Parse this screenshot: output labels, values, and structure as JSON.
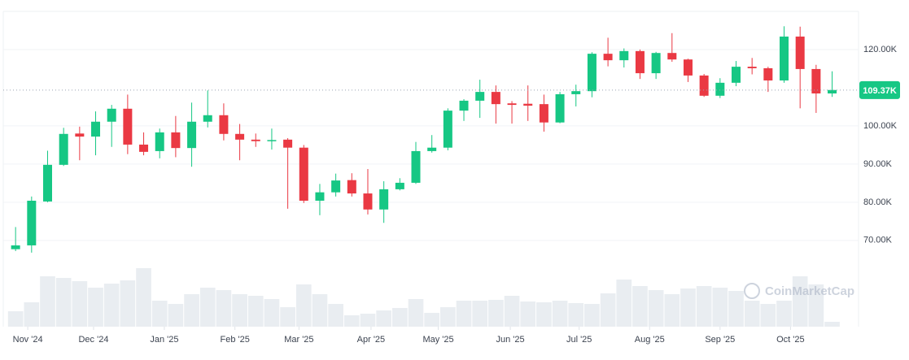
{
  "chart_data": {
    "type": "candlestick",
    "watermark": "CoinMarketCap",
    "ylim": [
      47.4,
      130
    ],
    "yticks": [
      {
        "value": 70,
        "label": "70.00K"
      },
      {
        "value": 80,
        "label": "80.00K"
      },
      {
        "value": 90,
        "label": "90.00K"
      },
      {
        "value": 100,
        "label": "100.00K"
      },
      {
        "value": 120,
        "label": "120.00K"
      }
    ],
    "last_price": {
      "value": 109.37,
      "label": "109.37K"
    },
    "xlim": [
      -0.77,
      52.65
    ],
    "xticks": [
      {
        "value": 0.76,
        "label": "Nov '24"
      },
      {
        "value": 4.87,
        "label": "Dec '24"
      },
      {
        "value": 9.29,
        "label": "Jan '25"
      },
      {
        "value": 13.7,
        "label": "Feb '25"
      },
      {
        "value": 17.7,
        "label": "Mar '25"
      },
      {
        "value": 22.2,
        "label": "Apr '25"
      },
      {
        "value": 26.4,
        "label": "May '25"
      },
      {
        "value": 30.9,
        "label": "Jun '25"
      },
      {
        "value": 35.2,
        "label": "Jul '25"
      },
      {
        "value": 39.6,
        "label": "Aug '25"
      },
      {
        "value": 44.0,
        "label": "Sep '25"
      },
      {
        "value": 48.4,
        "label": "Oct '25"
      }
    ],
    "up_color": "#16c784",
    "down_color": "#ea3943",
    "volume_color": "#e9edf1",
    "open": [
      67.7,
      68.7,
      80.2,
      89.8,
      98.0,
      97.2,
      101.1,
      104.5,
      95.1,
      93.4,
      98.3,
      94.2,
      101.1,
      102.8,
      97.9,
      96.4,
      96.1,
      96.4,
      94.3,
      80.4,
      82.6,
      85.8,
      82.3,
      78.1,
      83.4,
      85.1,
      93.4,
      94.3,
      104.0,
      106.6,
      108.9,
      105.9,
      105.8,
      105.7,
      100.9,
      108.3,
      109.1,
      118.9,
      117.2,
      119.6,
      113.8,
      119.1,
      117.4,
      113.2,
      107.9,
      111.3,
      115.5,
      115.1,
      111.9,
      123.4,
      114.9,
      108.5
    ],
    "high": [
      73.5,
      81.5,
      93.5,
      99.5,
      99.8,
      103.8,
      105.5,
      108.2,
      98.3,
      99.3,
      102.6,
      106.1,
      109.3,
      105.9,
      100.5,
      98.0,
      99.3,
      96.8,
      95.0,
      84.8,
      87.5,
      87.6,
      88.7,
      85.5,
      86.3,
      95.8,
      97.6,
      104.6,
      107.0,
      112.1,
      110.6,
      106.5,
      110.6,
      108.2,
      108.9,
      110.8,
      119.3,
      123.1,
      120.3,
      120.0,
      119.4,
      124.3,
      117.6,
      113.6,
      112.5,
      117.0,
      117.8,
      115.5,
      126.1,
      126.0,
      116.0,
      114.3
    ],
    "low": [
      67.2,
      66.8,
      80.0,
      89.5,
      91.0,
      92.3,
      94.5,
      92.6,
      92.3,
      91.5,
      91.8,
      89.3,
      99.6,
      96.2,
      91.0,
      94.5,
      93.8,
      78.3,
      79.8,
      76.6,
      81.5,
      81.5,
      76.8,
      74.6,
      83.1,
      84.8,
      93.0,
      93.6,
      101.3,
      102.1,
      100.6,
      100.6,
      101.3,
      98.5,
      100.7,
      105.1,
      107.5,
      115.6,
      115.3,
      112.3,
      112.3,
      116.8,
      111.5,
      107.6,
      107.3,
      110.4,
      113.5,
      108.9,
      111.3,
      104.6,
      103.4,
      107.6
    ],
    "close": [
      68.7,
      80.4,
      89.8,
      97.9,
      97.2,
      101.1,
      104.5,
      95.1,
      93.2,
      98.3,
      94.2,
      101.1,
      102.8,
      97.9,
      96.4,
      96.0,
      96.3,
      94.3,
      80.4,
      82.6,
      85.7,
      82.3,
      78.1,
      83.4,
      85.1,
      93.4,
      94.3,
      104.0,
      106.6,
      108.9,
      105.7,
      105.5,
      105.3,
      100.9,
      108.3,
      109.1,
      118.9,
      117.2,
      119.6,
      113.8,
      119.1,
      117.4,
      113.2,
      107.9,
      111.3,
      115.5,
      115.1,
      111.9,
      123.4,
      114.9,
      108.5,
      109.4
    ],
    "volume_lim": [
      0,
      100
    ],
    "volume": [
      19,
      30,
      62,
      60,
      56,
      48,
      53,
      57,
      72,
      32,
      28,
      40,
      48,
      45,
      40,
      38,
      34,
      24,
      52,
      40,
      28,
      14,
      16,
      20,
      23,
      34,
      17,
      24,
      32,
      32,
      33,
      38,
      31,
      30,
      32,
      29,
      28,
      41,
      58,
      50,
      45,
      40,
      47,
      50,
      48,
      44,
      32,
      28,
      32,
      62,
      52,
      6
    ]
  }
}
